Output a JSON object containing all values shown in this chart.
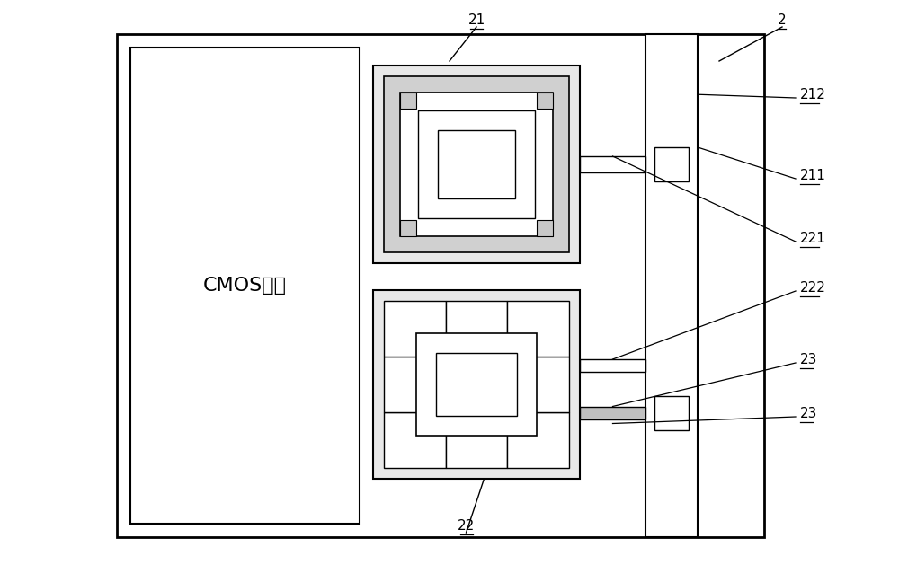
{
  "bg_color": "#ffffff",
  "lc": "#000000",
  "fig_width": 10.0,
  "fig_height": 6.48,
  "dpi": 100,
  "cmos_label": "CMOS电路"
}
